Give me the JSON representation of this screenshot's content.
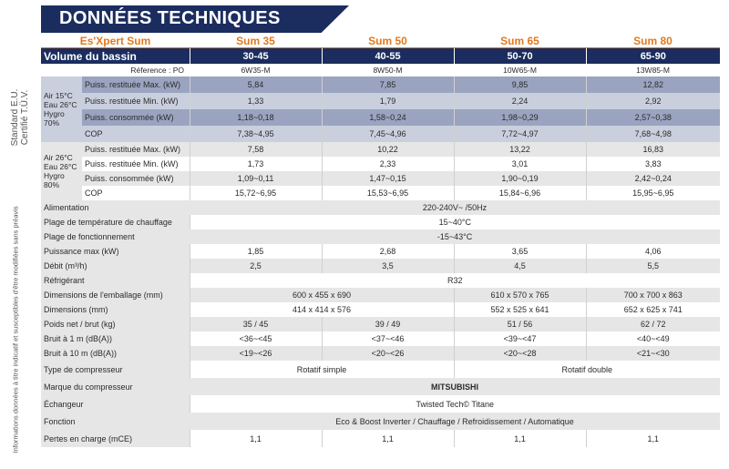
{
  "header": {
    "title": "DONNÉES TECHNIQUES"
  },
  "side_notes": {
    "standard": "Standard E.U.\nCertifié T.Ü.V.",
    "info": "Informations données à titre indicatif et susceptibles d'être modifiées sans préavis"
  },
  "table": {
    "brand": "Es'Xpert Sum",
    "models": [
      "Sum 35",
      "Sum 50",
      "Sum 65",
      "Sum 80"
    ],
    "volume_label": "Volume du bassin",
    "volumes": [
      "30-45",
      "40-55",
      "50-70",
      "65-90"
    ],
    "ref_label": "Réference : PO",
    "refs": [
      "6W35-M",
      "8W50-M",
      "10W65-M",
      "13W85-M"
    ],
    "group1": {
      "label": "Air 15°C\nEau 26°C\nHygro\n70%",
      "rows": [
        {
          "label": "Puiss. restituée Max. (kW)",
          "values": [
            "5,84",
            "7,85",
            "9,85",
            "12,82"
          ]
        },
        {
          "label": "Puiss. restituée Min. (kW)",
          "values": [
            "1,33",
            "1,79",
            "2,24",
            "2,92"
          ]
        },
        {
          "label": "Puiss. consommée (kW)",
          "values": [
            "1,18~0,18",
            "1,58~0,24",
            "1,98~0,29",
            "2,57~0,38"
          ]
        },
        {
          "label": "COP",
          "values": [
            "7,38~4,95",
            "7,45~4,96",
            "7,72~4,97",
            "7,68~4,98"
          ]
        }
      ]
    },
    "group2": {
      "label": "Air 26°C\nEau 26°C\nHygro\n80%",
      "rows": [
        {
          "label": "Puiss. restituée Max. (kW)",
          "values": [
            "7,58",
            "10,22",
            "13,22",
            "16,83"
          ]
        },
        {
          "label": "Puiss. restituée Min. (kW)",
          "values": [
            "1,73",
            "2,33",
            "3,01",
            "3,83"
          ]
        },
        {
          "label": "Puiss. consommée (kW)",
          "values": [
            "1,09~0,11",
            "1,47~0,15",
            "1,90~0,19",
            "2,42~0,24"
          ]
        },
        {
          "label": "COP",
          "values": [
            "15,72~6,95",
            "15,53~6,95",
            "15,84~6,96",
            "15,95~6,95"
          ]
        }
      ]
    },
    "alimentation": {
      "label": "Alimentation",
      "value": "220-240V~ /50Hz"
    },
    "plage_chauffage": {
      "label": "Plage de température de chauffage",
      "value": "15~40°C"
    },
    "plage_fonctionnement": {
      "label": "Plage de fonctionnement",
      "value": "-15~43°C"
    },
    "puissance_max": {
      "label": "Puissance max (kW)",
      "values": [
        "1,85",
        "2,68",
        "3,65",
        "4,06"
      ]
    },
    "debit": {
      "label": "Débit (m³/h)",
      "values": [
        "2,5",
        "3,5",
        "4,5",
        "5,5"
      ]
    },
    "refrigerant": {
      "label": "Réfrigérant",
      "value": "R32"
    },
    "dim_emballage": {
      "label": "Dimensions de l'emballage (mm)",
      "values": [
        "600 x 455 x 690",
        "610 x 570 x 765",
        "700 x 700 x 863"
      ]
    },
    "dimensions": {
      "label": "Dimensions (mm)",
      "values": [
        "414 x 414 x 576",
        "552 x 525 x 641",
        "652 x 625 x 741"
      ]
    },
    "poids": {
      "label": "Poids net / brut (kg)",
      "values": [
        "35 / 45",
        "39 / 49",
        "51 / 56",
        "62 / 72"
      ]
    },
    "bruit1": {
      "label": "Bruit à 1 m (dB(A))",
      "values": [
        "<36~<45",
        "<37~<46",
        "<39~<47",
        "<40~<49"
      ]
    },
    "bruit10": {
      "label": "Bruit à 10 m (dB(A))",
      "values": [
        "<19~<26",
        "<20~<26",
        "<20~<28",
        "<21~<30"
      ]
    },
    "compresseur_type": {
      "label": "Type de compresseur",
      "values": [
        "Rotatif simple",
        "Rotatif double"
      ]
    },
    "compresseur_marque": {
      "label": "Marque du compresseur",
      "value": "MITSUBISHI"
    },
    "echangeur": {
      "label": "Échangeur",
      "value": "Twisted Tech© Titane"
    },
    "fonction": {
      "label": "Fonction",
      "value": "Eco & Boost Inverter / Chauffage / Refroidissement / Automatique"
    },
    "pertes": {
      "label": "Pertes en charge (mCE)",
      "values": [
        "1,1",
        "1,1",
        "1,1",
        "1,1"
      ]
    }
  }
}
